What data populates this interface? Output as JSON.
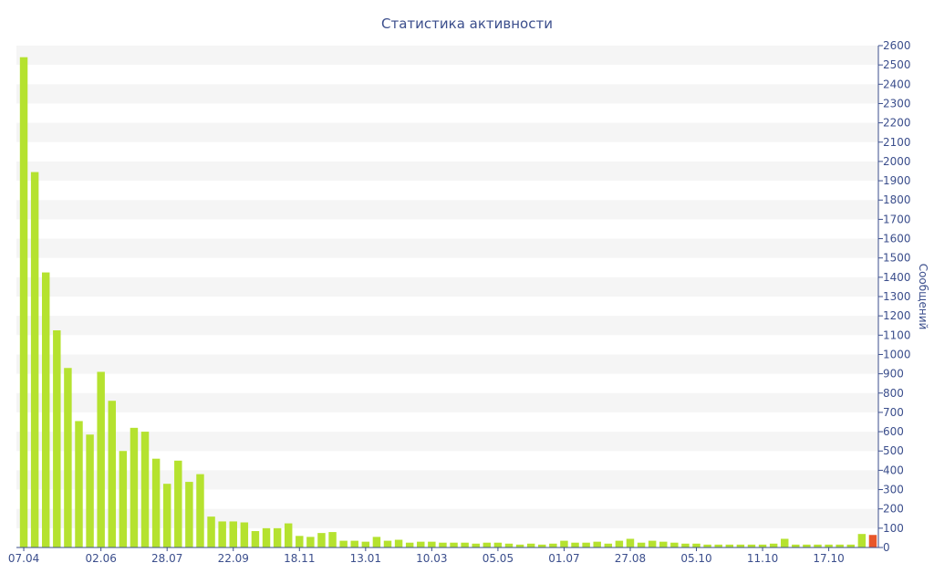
{
  "chart_data": {
    "type": "bar",
    "title": "Статистика активности",
    "xlabel": "",
    "ylabel": "Сообщений",
    "ylim": [
      0,
      2600
    ],
    "y_ticks": [
      0,
      100,
      200,
      300,
      400,
      500,
      600,
      700,
      800,
      900,
      1000,
      1100,
      1200,
      1300,
      1400,
      1500,
      1600,
      1700,
      1800,
      1900,
      2000,
      2100,
      2200,
      2300,
      2400,
      2500,
      2600
    ],
    "y_axis_position": "right",
    "x_tick_labels": [
      {
        "index": 0,
        "label": "07.04"
      },
      {
        "index": 7,
        "label": "02.06"
      },
      {
        "index": 13,
        "label": "28.07"
      },
      {
        "index": 19,
        "label": "22.09"
      },
      {
        "index": 25,
        "label": "18.11"
      },
      {
        "index": 31,
        "label": "13.01"
      },
      {
        "index": 37,
        "label": "10.03"
      },
      {
        "index": 43,
        "label": "05.05"
      },
      {
        "index": 49,
        "label": "01.07"
      },
      {
        "index": 55,
        "label": "27.08"
      },
      {
        "index": 61,
        "label": "05.10"
      },
      {
        "index": 67,
        "label": "11.10"
      },
      {
        "index": 73,
        "label": "17.10"
      }
    ],
    "values": [
      2540,
      1945,
      1425,
      1125,
      930,
      655,
      585,
      910,
      760,
      500,
      620,
      600,
      460,
      330,
      450,
      340,
      380,
      160,
      135,
      135,
      130,
      85,
      100,
      100,
      125,
      60,
      55,
      75,
      80,
      35,
      35,
      30,
      55,
      35,
      40,
      25,
      30,
      30,
      25,
      25,
      25,
      20,
      25,
      25,
      20,
      15,
      20,
      15,
      20,
      35,
      25,
      25,
      30,
      20,
      35,
      45,
      25,
      35,
      30,
      25,
      20,
      20,
      15,
      15,
      15,
      15,
      15,
      15,
      20,
      45,
      15,
      15,
      15,
      15,
      15,
      15,
      70,
      65
    ],
    "highlight_index": 77,
    "colors": {
      "bar": "#b5e22f",
      "highlight": "#e8562a",
      "text": "#3b4e8c",
      "band": "#f5f5f5",
      "axis": "#3b4e8c"
    },
    "grid": "alternating horizontal bands",
    "legend": "none"
  }
}
